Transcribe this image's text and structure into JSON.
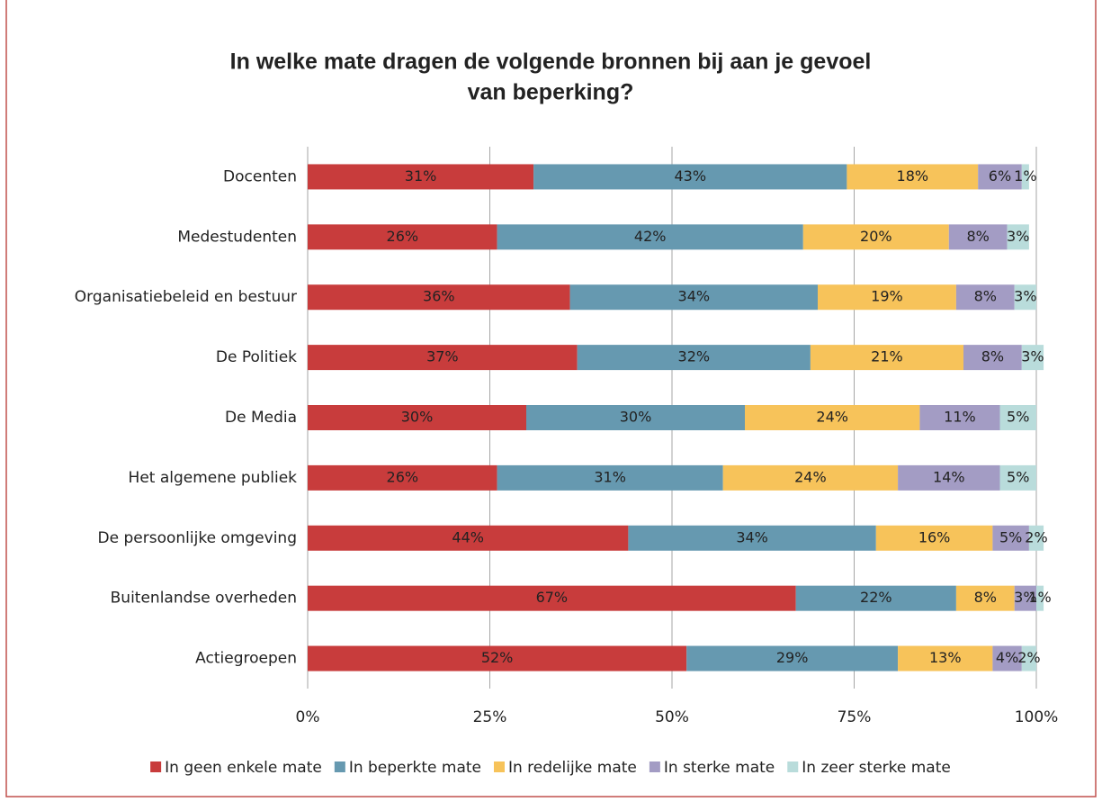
{
  "chart_data": {
    "type": "stacked_barh",
    "title": [
      "In welke mate dragen de volgende bronnen bij aan je gevoel",
      "van beperking?"
    ],
    "categories": [
      "Docenten",
      "Medestudenten",
      "Organisatiebeleid en bestuur",
      "De Politiek",
      "De Media",
      "Het algemene publiek",
      "De persoonlijke omgeving",
      "Buitenlandse overheden",
      "Actiegroepen"
    ],
    "series": [
      {
        "name": "In geen enkele mate",
        "color": "#c83c3c",
        "values": [
          31,
          26,
          36,
          37,
          30,
          26,
          44,
          67,
          52
        ],
        "value_labels": [
          "31%",
          "26%",
          "36%",
          "37%",
          "30%",
          "26%",
          "44%",
          "67%",
          "52%"
        ]
      },
      {
        "name": "In beperkte mate",
        "color": "#6699b0",
        "values": [
          43,
          42,
          34,
          32,
          30,
          31,
          34,
          22,
          29
        ],
        "value_labels": [
          "43%",
          "42%",
          "34%",
          "32%",
          "30%",
          "31%",
          "34%",
          "22%",
          "29%"
        ]
      },
      {
        "name": "In redelijke mate",
        "color": "#f7c35a",
        "values": [
          18,
          20,
          19,
          21,
          24,
          24,
          16,
          8,
          13
        ],
        "value_labels": [
          "18%",
          "20%",
          "19%",
          "21%",
          "24%",
          "24%",
          "16%",
          "8%",
          "13%"
        ]
      },
      {
        "name": "In sterke mate",
        "color": "#a39cc4",
        "values": [
          6,
          8,
          8,
          8,
          11,
          14,
          5,
          3,
          4
        ],
        "value_labels": [
          "6%",
          "8%",
          "8%",
          "8%",
          "11%",
          "14%",
          "5%",
          "3%",
          "4%"
        ]
      },
      {
        "name": "In zeer sterke mate",
        "color": "#b9dcdb",
        "values": [
          1,
          3,
          3,
          3,
          5,
          5,
          2,
          1,
          2
        ],
        "value_labels": [
          "1%",
          "3%",
          "3%",
          "3%",
          "5%",
          "5%",
          "2%",
          "1%",
          "2%"
        ]
      }
    ],
    "xlim": [
      0,
      100
    ],
    "xticks": [
      {
        "value": 0,
        "label": "0%"
      },
      {
        "value": 25,
        "label": "25%"
      },
      {
        "value": 50,
        "label": "50%"
      },
      {
        "value": 75,
        "label": "75%"
      },
      {
        "value": 100,
        "label": "100%"
      }
    ],
    "grid": true,
    "legend": "bottom"
  }
}
